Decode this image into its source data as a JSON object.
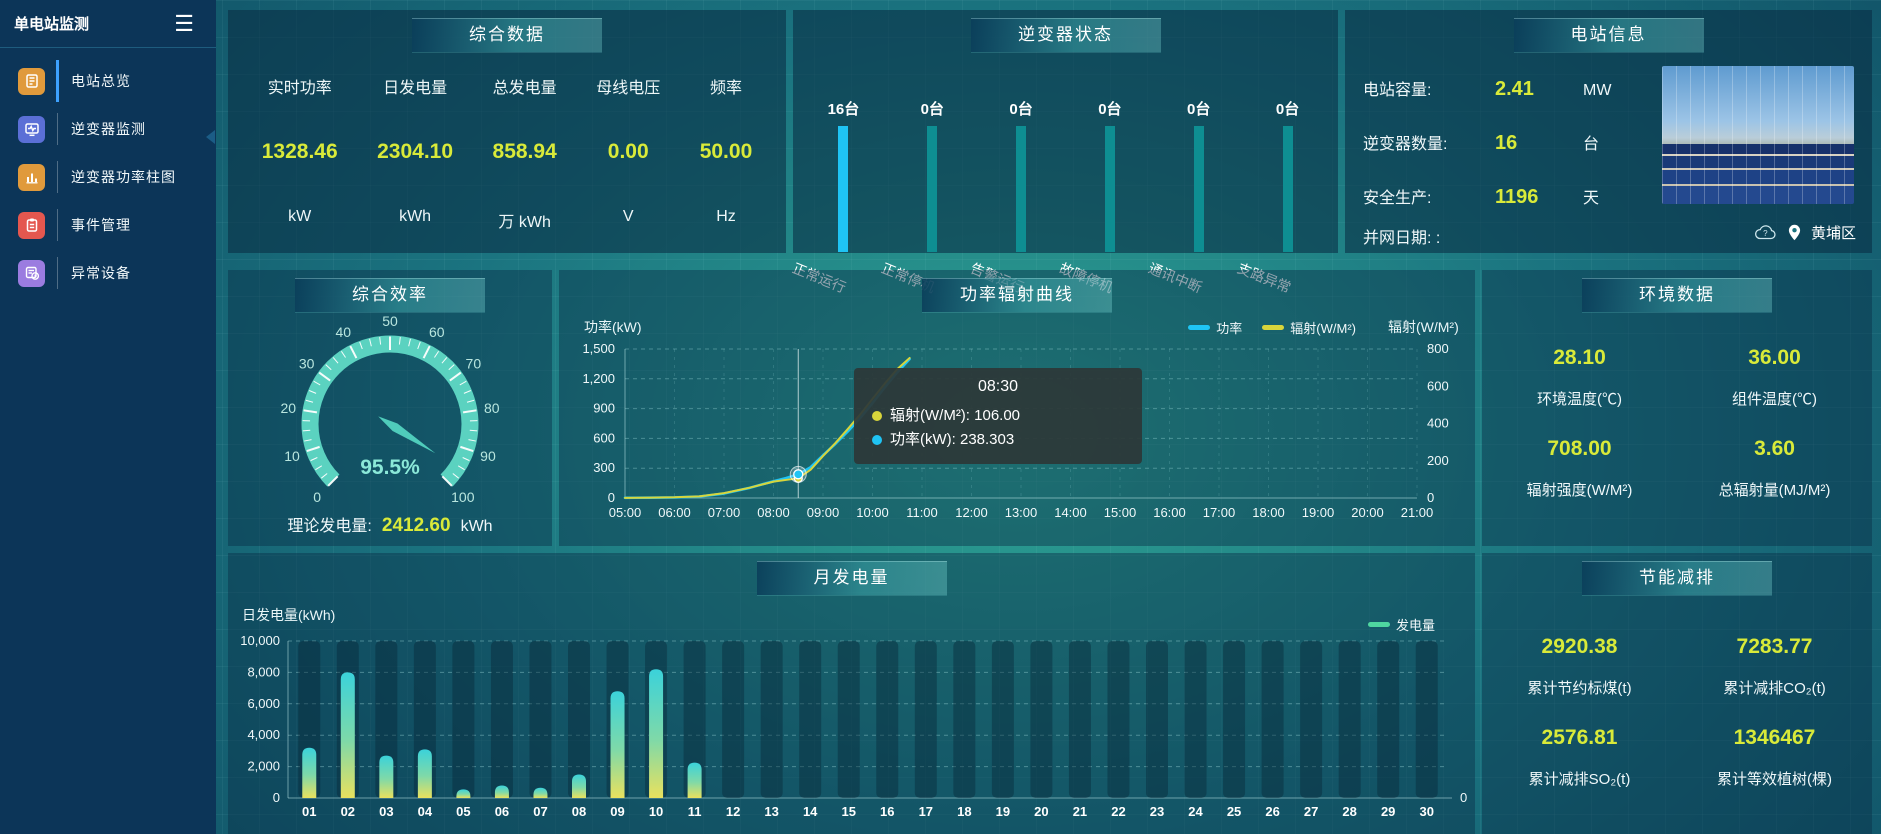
{
  "app": {
    "title": "单电站监测"
  },
  "colors": {
    "accent_value": "#d9ea39",
    "bar_active": "#1fc4f4",
    "bar_idle": "#0e8e92",
    "power_line": "#1fc4f4",
    "radiation_line": "#d8d53b",
    "generation_bar_top": "#3bd2da",
    "generation_bar_bottom": "#e9e15e",
    "gauge": "#5bd2c0",
    "sidebar_bg": "#0c3558"
  },
  "sidebar": {
    "items": [
      {
        "label": "电站总览",
        "icon": "station-overview-icon",
        "active": true
      },
      {
        "label": "逆变器监测",
        "icon": "inverter-monitor-icon",
        "active": false
      },
      {
        "label": "逆变器功率柱图",
        "icon": "inverter-power-bars-icon",
        "active": false
      },
      {
        "label": "事件管理",
        "icon": "event-management-icon",
        "active": false
      },
      {
        "label": "异常设备",
        "icon": "abnormal-device-icon",
        "active": false
      }
    ]
  },
  "panels": {
    "summary": {
      "title": "综合数据",
      "stats": [
        {
          "label": "实时功率",
          "value": "1328.46",
          "unit": "kW"
        },
        {
          "label": "日发电量",
          "value": "2304.10",
          "unit": "kWh"
        },
        {
          "label": "总发电量",
          "value": "858.94",
          "unit": "万 kWh"
        },
        {
          "label": "母线电压",
          "value": "0.00",
          "unit": "V"
        },
        {
          "label": "频率",
          "value": "50.00",
          "unit": "Hz"
        }
      ]
    },
    "inverter_status": {
      "title": "逆变器状态",
      "items": [
        {
          "count": "16台",
          "label": "正常运行",
          "highlight": true
        },
        {
          "count": "0台",
          "label": "正常停机",
          "highlight": false
        },
        {
          "count": "0台",
          "label": "告警运行",
          "highlight": false
        },
        {
          "count": "0台",
          "label": "故障停机",
          "highlight": false
        },
        {
          "count": "0台",
          "label": "通讯中断",
          "highlight": false
        },
        {
          "count": "0台",
          "label": "支路异常",
          "highlight": false
        }
      ]
    },
    "station_info": {
      "title": "电站信息",
      "rows": [
        {
          "label": "电站容量:",
          "value": "2.41",
          "unit": "MW"
        },
        {
          "label": "逆变器数量:",
          "value": "16",
          "unit": "台"
        },
        {
          "label": "安全生产:",
          "value": "1196",
          "unit": "天"
        },
        {
          "label": "并网日期: :",
          "value": "",
          "unit": ""
        }
      ],
      "location": "黄埔区"
    },
    "efficiency": {
      "title": "综合效率",
      "gauge_value": 95.5,
      "gauge_label": "95.5%",
      "gauge_min": 0,
      "gauge_max": 100,
      "theory_label": "理论发电量:",
      "theory_value": "2412.60",
      "theory_unit": "kWh"
    },
    "environment": {
      "title": "环境数据",
      "stats": [
        {
          "value": "28.10",
          "label": "环境温度(℃)"
        },
        {
          "value": "36.00",
          "label": "组件温度(℃)"
        },
        {
          "value": "708.00",
          "label": "辐射强度(W/M²)"
        },
        {
          "value": "3.60",
          "label": "总辐射量(MJ/M²)"
        }
      ]
    },
    "savings": {
      "title": "节能减排",
      "stats": [
        {
          "value": "2920.38",
          "label": "累计节约标煤(t)"
        },
        {
          "value": "7283.77",
          "label": "累计减排CO₂(t)"
        },
        {
          "value": "2576.81",
          "label": "累计减排SO₂(t)"
        },
        {
          "value": "1346467",
          "label": "累计等效植树(棵)"
        }
      ]
    }
  },
  "chart_data": [
    {
      "id": "power_radiation_curve",
      "type": "line",
      "title": "功率辐射曲线",
      "left_axis": {
        "name": "功率(kW)",
        "max": 1500,
        "ticks": [
          [
            0,
            "0"
          ],
          [
            300,
            "300"
          ],
          [
            600,
            "600"
          ],
          [
            900,
            "900"
          ],
          [
            1200,
            "1,200"
          ],
          [
            1500,
            "1,500"
          ]
        ]
      },
      "right_axis": {
        "name": "辐射(W/M²)",
        "max": 800,
        "ticks": [
          [
            0,
            "0"
          ],
          [
            200,
            "200"
          ],
          [
            400,
            "400"
          ],
          [
            600,
            "600"
          ],
          [
            800,
            "800"
          ]
        ]
      },
      "x_ticks": [
        "05:00",
        "06:00",
        "07:00",
        "08:00",
        "09:00",
        "10:00",
        "11:00",
        "12:00",
        "13:00",
        "14:00",
        "15:00",
        "16:00",
        "17:00",
        "18:00",
        "19:00",
        "20:00",
        "21:00"
      ],
      "x_start_hour": 5,
      "x_end_hour": 21,
      "series": [
        {
          "name": "功率",
          "axis": "left",
          "color": "#1fc4f4",
          "points": [
            [
              5,
              2
            ],
            [
              5.5,
              3
            ],
            [
              6,
              6
            ],
            [
              6.5,
              15
            ],
            [
              7,
              45
            ],
            [
              7.5,
              100
            ],
            [
              7.75,
              135
            ],
            [
              8,
              168
            ],
            [
              8.25,
              200
            ],
            [
              8.5,
              238.3
            ],
            [
              8.75,
              310
            ],
            [
              9,
              430
            ],
            [
              9.25,
              545
            ],
            [
              9.5,
              670
            ],
            [
              9.75,
              805
            ],
            [
              10,
              955
            ],
            [
              10.25,
              1115
            ],
            [
              10.5,
              1265
            ],
            [
              10.75,
              1400
            ]
          ]
        },
        {
          "name": "辐射(W/M²)",
          "axis": "right",
          "color": "#d8d53b",
          "points": [
            [
              5,
              1
            ],
            [
              5.5,
              2
            ],
            [
              6,
              4
            ],
            [
              6.5,
              9
            ],
            [
              7,
              26
            ],
            [
              7.5,
              54
            ],
            [
              7.75,
              71
            ],
            [
              8,
              88
            ],
            [
              8.25,
              97
            ],
            [
              8.5,
              106
            ],
            [
              8.75,
              152
            ],
            [
              9,
              225
            ],
            [
              9.25,
              295
            ],
            [
              9.5,
              370
            ],
            [
              9.75,
              448
            ],
            [
              10,
              532
            ],
            [
              10.25,
              615
            ],
            [
              10.5,
              692
            ],
            [
              10.75,
              752
            ]
          ]
        }
      ],
      "tooltip": {
        "time": "08:30",
        "x": 8.5,
        "power": 238.303,
        "radiation": 106,
        "rows": [
          {
            "color": "#d8d53b",
            "label": "辐射(W/M²): 106.00"
          },
          {
            "color": "#1fc4f4",
            "label": "功率(kW): 238.303"
          }
        ]
      }
    },
    {
      "id": "monthly_generation",
      "type": "bar",
      "title": "月发电量",
      "ylabel": "日发电量(kWh)",
      "legend": "发电量",
      "legend_color": "#4fd7a0",
      "ylim": [
        0,
        10000
      ],
      "yticks": [
        [
          0,
          "0"
        ],
        [
          2000,
          "2,000"
        ],
        [
          4000,
          "4,000"
        ],
        [
          6000,
          "6,000"
        ],
        [
          8000,
          "8,000"
        ],
        [
          10000,
          "10,000"
        ]
      ],
      "categories": [
        "01",
        "02",
        "03",
        "04",
        "05",
        "06",
        "07",
        "08",
        "09",
        "10",
        "11",
        "12",
        "13",
        "14",
        "15",
        "16",
        "17",
        "18",
        "19",
        "20",
        "21",
        "22",
        "23",
        "24",
        "25",
        "26",
        "27",
        "28",
        "29",
        "30"
      ],
      "values": [
        3200,
        8000,
        2700,
        3100,
        550,
        800,
        650,
        1500,
        6800,
        8200,
        2250,
        0,
        0,
        0,
        0,
        0,
        0,
        0,
        0,
        0,
        0,
        0,
        0,
        0,
        0,
        0,
        0,
        0,
        0,
        0
      ]
    }
  ]
}
